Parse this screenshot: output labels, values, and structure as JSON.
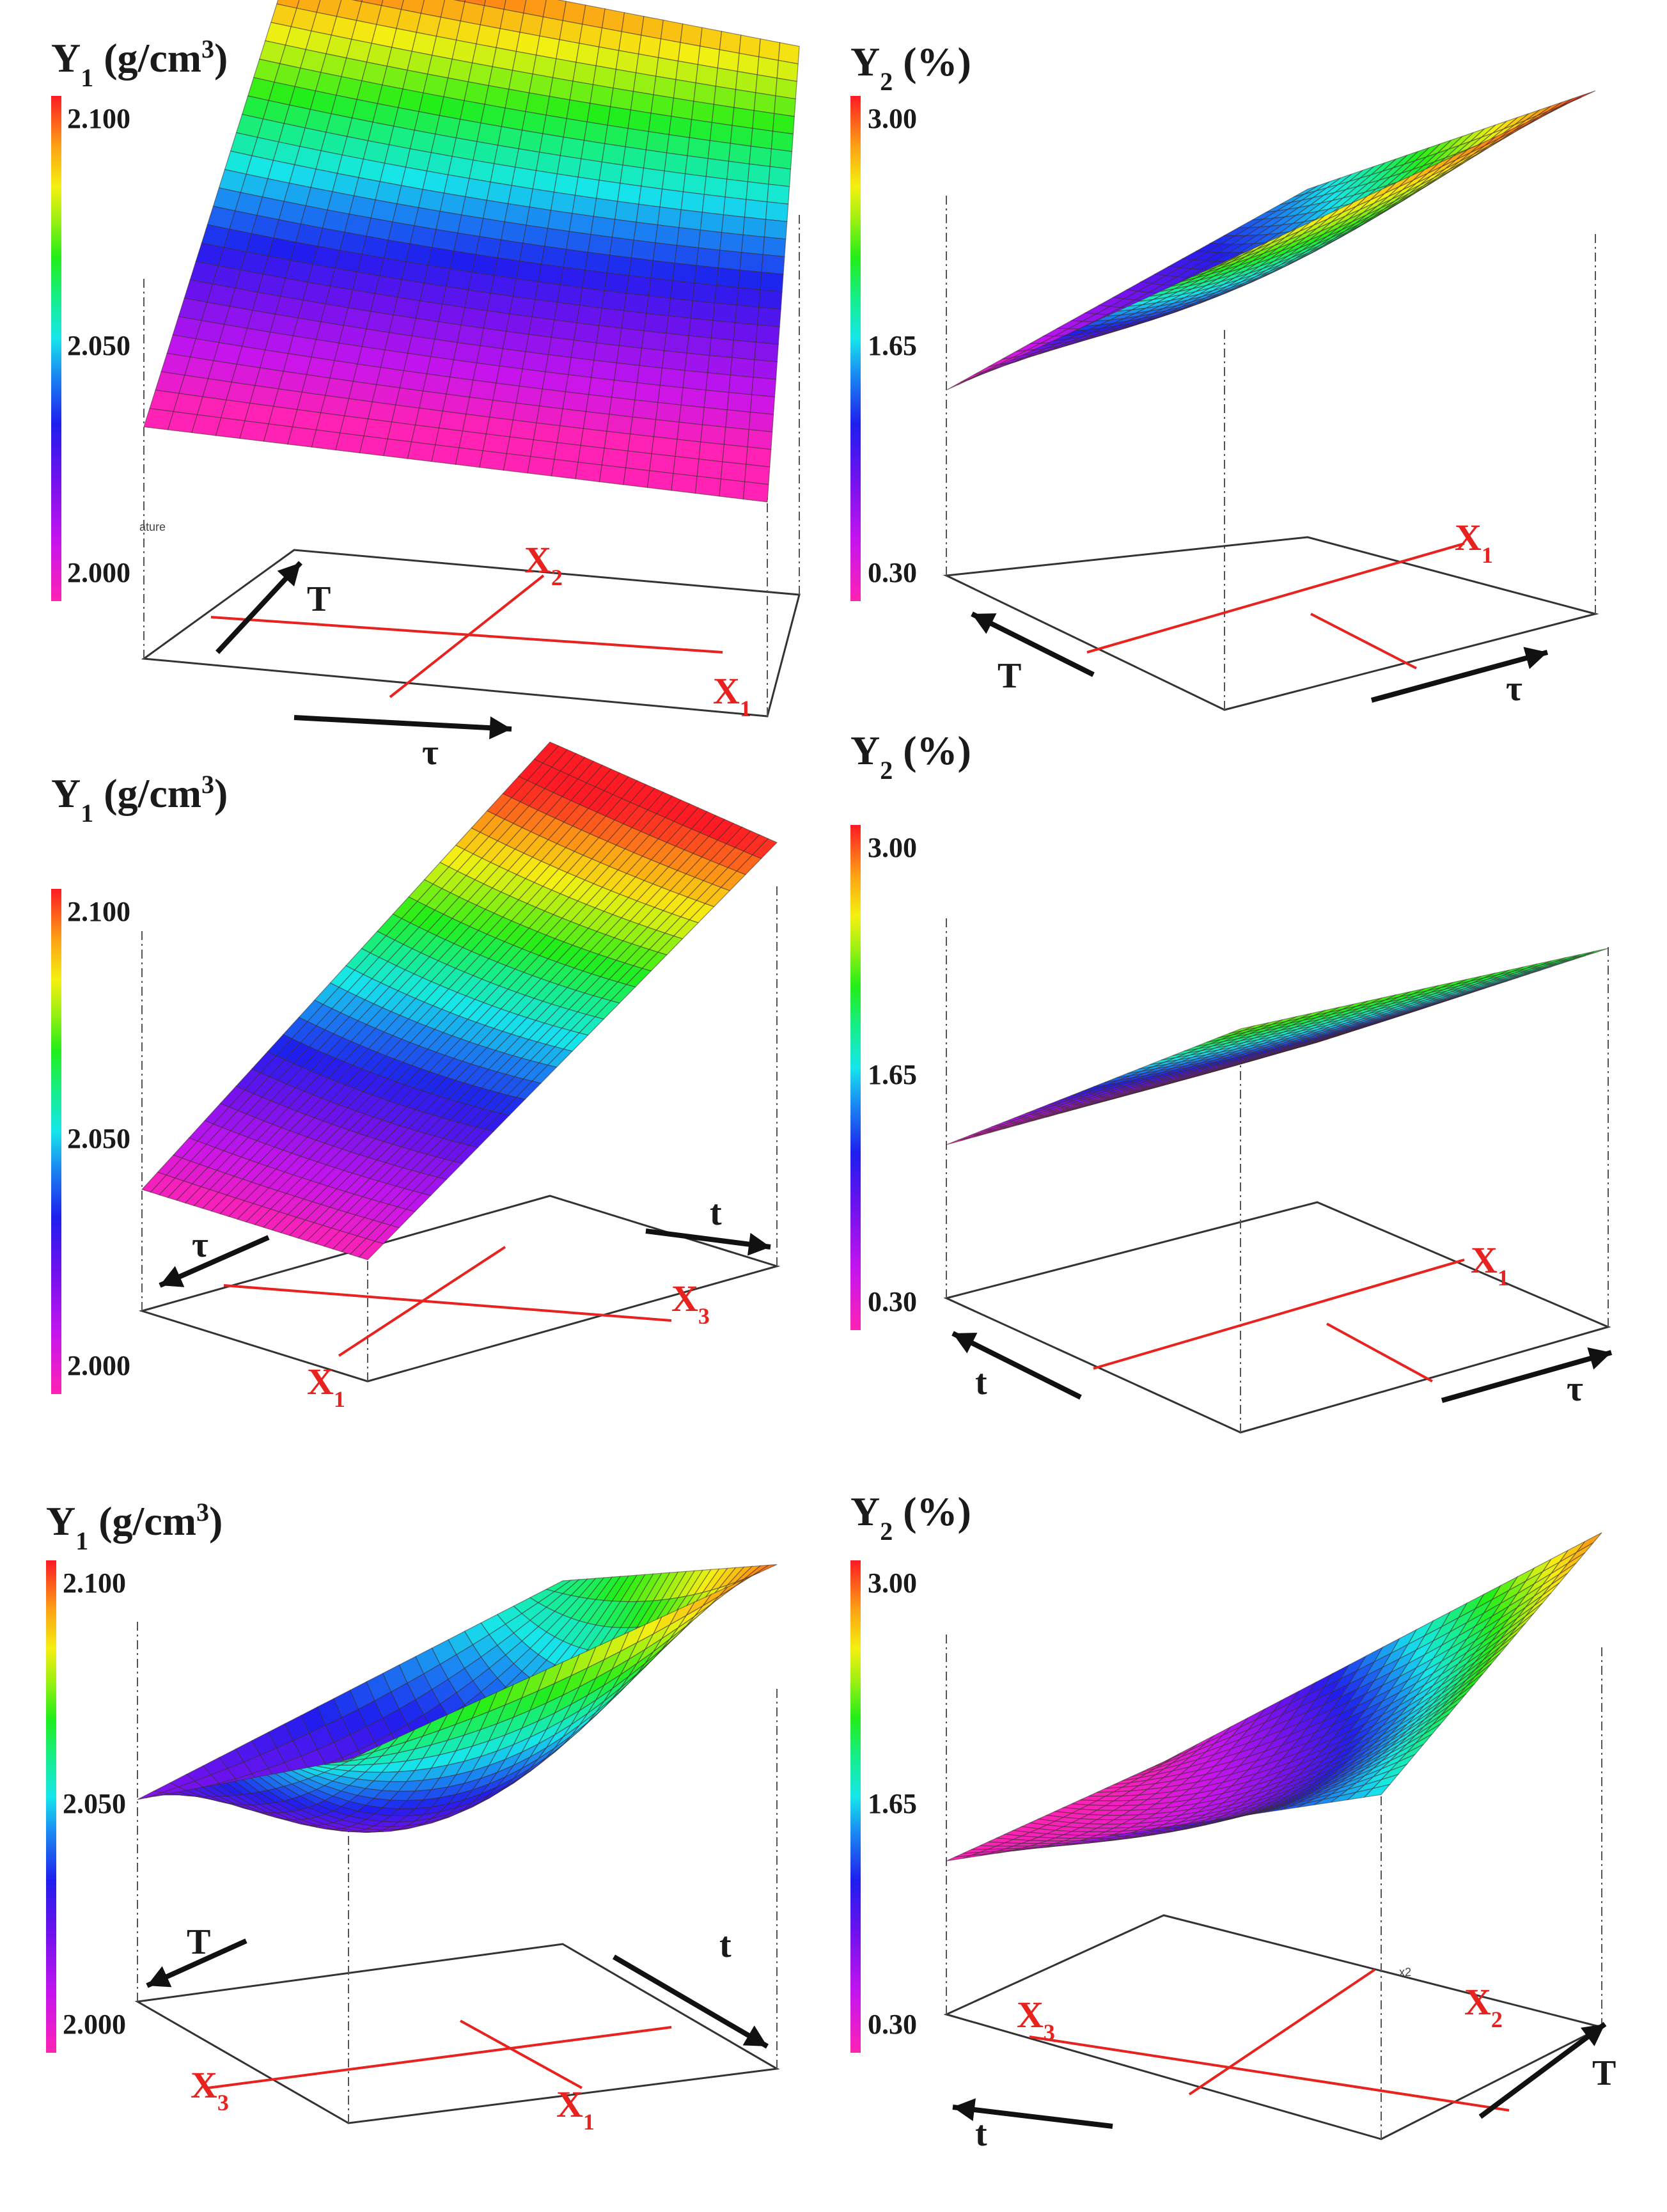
{
  "figure": {
    "panel_count": 6,
    "layout": "3 rows x 2 columns of 3D response surfaces"
  },
  "chart_data": [
    {
      "type": "surface",
      "title_main": "Y",
      "title_sub": "1",
      "title_unit": " (g/cm",
      "title_sup": "3",
      "title_close": ")",
      "colorbar_ticks": [
        "2.100",
        "2.050",
        "2.000"
      ],
      "colorbar_range": [
        2.0,
        2.1
      ],
      "factor_axes": [
        "X2",
        "X1"
      ],
      "factor_labels": [
        {
          "main": "X",
          "sub": "2"
        },
        {
          "main": "X",
          "sub": "1"
        }
      ],
      "arrow_labels": [
        "T",
        "τ"
      ],
      "stray_text": "ature",
      "surface_corner_values": {
        "back_left": 2.1,
        "back_right": 2.085,
        "front_left": 1.995,
        "front_right": 1.99
      },
      "surface_center_value": 2.04
    },
    {
      "type": "surface",
      "title_main": "Y",
      "title_sub": "2",
      "title_unit": " (%)",
      "colorbar_ticks": [
        "3.00",
        "1.65",
        "0.30"
      ],
      "colorbar_range": [
        0.3,
        3.0
      ],
      "factor_axes": [
        "X1"
      ],
      "factor_labels": [
        {
          "main": "X",
          "sub": "1"
        }
      ],
      "arrow_labels": [
        "T",
        "τ"
      ],
      "surface_corner_values": {
        "back_left": 1.6,
        "back_right": 3.0,
        "front_left": 0.3,
        "front_right": 2.4
      },
      "surface_center_value": 1.5
    },
    {
      "type": "surface",
      "title_main": "Y",
      "title_sub": "1",
      "title_unit": " (g/cm",
      "title_sup": "3",
      "title_close": ")",
      "colorbar_ticks": [
        "2.100",
        "2.050",
        "2.000"
      ],
      "colorbar_range": [
        2.0,
        2.1
      ],
      "factor_axes": [
        "X1",
        "X3"
      ],
      "factor_labels": [
        {
          "main": "X",
          "sub": "1"
        },
        {
          "main": "X",
          "sub": "3"
        }
      ],
      "arrow_labels": [
        "τ",
        "t"
      ],
      "surface_corner_values": {
        "back_left": 2.11,
        "back_right": 2.1,
        "front_left": 2.0,
        "front_right": 2.0
      },
      "surface_center_value": 2.05
    },
    {
      "type": "surface",
      "title_main": "Y",
      "title_sub": "2",
      "title_unit": " (%)",
      "colorbar_ticks": [
        "3.00",
        "1.65",
        "0.30"
      ],
      "colorbar_range": [
        0.3,
        3.0
      ],
      "factor_axes": [
        "X1"
      ],
      "factor_labels": [
        {
          "main": "X",
          "sub": "1"
        }
      ],
      "arrow_labels": [
        "t",
        "τ"
      ],
      "surface_corner_values": {
        "back_left": 0.35,
        "back_right": 2.1,
        "front_left": 0.3,
        "front_right": 2.3
      },
      "surface_center_value": 1.2
    },
    {
      "type": "surface",
      "title_main": "Y",
      "title_sub": "1",
      "title_unit": " (g/cm",
      "title_sup": "3",
      "title_close": ")",
      "colorbar_ticks": [
        "2.100",
        "2.050",
        "2.000"
      ],
      "colorbar_range": [
        2.0,
        2.1
      ],
      "factor_axes": [
        "X3",
        "X1"
      ],
      "factor_labels": [
        {
          "main": "X",
          "sub": "3"
        },
        {
          "main": "X",
          "sub": "1"
        }
      ],
      "arrow_labels": [
        "T",
        "t"
      ],
      "surface_corner_values": {
        "back_left": 2.06,
        "back_right": 2.095,
        "front_left": 2.02,
        "front_right": 2.06
      },
      "surface_center_value": 2.025
    },
    {
      "type": "surface",
      "title_main": "Y",
      "title_sub": "2",
      "title_unit": " (%)",
      "colorbar_ticks": [
        "3.00",
        "1.65",
        "0.30"
      ],
      "colorbar_range": [
        0.3,
        3.0
      ],
      "factor_axes": [
        "X3",
        "X2"
      ],
      "factor_labels": [
        {
          "main": "X",
          "sub": "3"
        },
        {
          "main": "X",
          "sub": "2"
        }
      ],
      "arrow_labels": [
        "t",
        "T"
      ],
      "stray_text": "x2",
      "surface_corner_values": {
        "back_left": 0.3,
        "back_right": 2.8,
        "front_left": 0.3,
        "front_right": 1.7
      },
      "surface_center_value": 0.9
    }
  ]
}
